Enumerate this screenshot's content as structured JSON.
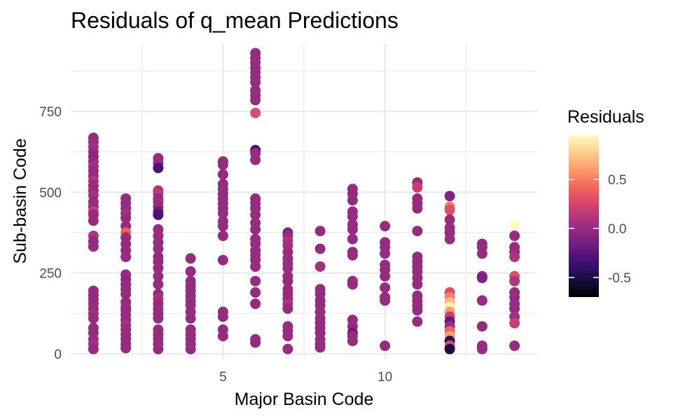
{
  "chart_data": {
    "type": "scatter",
    "title": "Residuals of q_mean Predictions",
    "xlabel": "Major Basin Code",
    "ylabel": "Sub-basin Code",
    "xlim": [
      0.3,
      14.7
    ],
    "ylim": [
      -15,
      960
    ],
    "x_ticks": [
      5,
      10
    ],
    "x_tick_labels": [
      "5",
      "10"
    ],
    "x_minor_ticks": [
      2.5,
      7.5,
      12.5
    ],
    "y_ticks": [
      0,
      250,
      500,
      750
    ],
    "y_tick_labels": [
      "0",
      "250",
      "500",
      "750"
    ],
    "y_minor_ticks": [
      125,
      375,
      625,
      875
    ],
    "grid": true,
    "legend": {
      "title": "Residuals",
      "position": "right",
      "colormap": "magma",
      "range": [
        -0.7,
        0.95
      ],
      "ticks": [
        -0.5,
        0.0,
        0.5
      ],
      "tick_labels": [
        "-0.5",
        "0.0",
        "0.5"
      ]
    },
    "colors": {
      "grid": "#ebebeb",
      "tick_text": "#4d4d4d",
      "magma": [
        "#000004",
        "#180f3d",
        "#440f76",
        "#721f81",
        "#9e2f7f",
        "#cd4071",
        "#f1605d",
        "#fd9668",
        "#feca8d",
        "#fcfdbf"
      ]
    },
    "points": [
      {
        "x": 1,
        "y": 668,
        "r": 0
      },
      {
        "x": 1,
        "y": 655,
        "r": 0
      },
      {
        "x": 1,
        "y": 640,
        "r": 0.05
      },
      {
        "x": 1,
        "y": 625,
        "r": 0
      },
      {
        "x": 1,
        "y": 610,
        "r": -0.05
      },
      {
        "x": 1,
        "y": 595,
        "r": 0
      },
      {
        "x": 1,
        "y": 580,
        "r": 0.05
      },
      {
        "x": 1,
        "y": 565,
        "r": 0
      },
      {
        "x": 1,
        "y": 550,
        "r": 0
      },
      {
        "x": 1,
        "y": 535,
        "r": 0.1
      },
      {
        "x": 1,
        "y": 520,
        "r": 0
      },
      {
        "x": 1,
        "y": 505,
        "r": 0
      },
      {
        "x": 1,
        "y": 490,
        "r": 0.05
      },
      {
        "x": 1,
        "y": 470,
        "r": 0
      },
      {
        "x": 1,
        "y": 455,
        "r": 0
      },
      {
        "x": 1,
        "y": 440,
        "r": 0.2
      },
      {
        "x": 1,
        "y": 430,
        "r": 0
      },
      {
        "x": 1,
        "y": 412,
        "r": 0
      },
      {
        "x": 1,
        "y": 365,
        "r": 0.1
      },
      {
        "x": 1,
        "y": 348,
        "r": 0
      },
      {
        "x": 1,
        "y": 332,
        "r": 0
      },
      {
        "x": 1,
        "y": 195,
        "r": 0
      },
      {
        "x": 1,
        "y": 182,
        "r": 0
      },
      {
        "x": 1,
        "y": 168,
        "r": 0
      },
      {
        "x": 1,
        "y": 155,
        "r": 0
      },
      {
        "x": 1,
        "y": 140,
        "r": 0
      },
      {
        "x": 1,
        "y": 125,
        "r": 0.05
      },
      {
        "x": 1,
        "y": 110,
        "r": 0
      },
      {
        "x": 1,
        "y": 80,
        "r": 0
      },
      {
        "x": 1,
        "y": 65,
        "r": 0
      },
      {
        "x": 1,
        "y": 45,
        "r": 0
      },
      {
        "x": 1,
        "y": 30,
        "r": 0.05
      },
      {
        "x": 1,
        "y": 15,
        "r": 0
      },
      {
        "x": 2,
        "y": 480,
        "r": 0
      },
      {
        "x": 2,
        "y": 465,
        "r": 0
      },
      {
        "x": 2,
        "y": 450,
        "r": 0
      },
      {
        "x": 2,
        "y": 435,
        "r": 0.05
      },
      {
        "x": 2,
        "y": 420,
        "r": 0
      },
      {
        "x": 2,
        "y": 395,
        "r": 0
      },
      {
        "x": 2,
        "y": 375,
        "r": 0.4
      },
      {
        "x": 2,
        "y": 360,
        "r": 0
      },
      {
        "x": 2,
        "y": 340,
        "r": 0
      },
      {
        "x": 2,
        "y": 320,
        "r": 0
      },
      {
        "x": 2,
        "y": 300,
        "r": 0
      },
      {
        "x": 2,
        "y": 245,
        "r": 0
      },
      {
        "x": 2,
        "y": 230,
        "r": -0.05
      },
      {
        "x": 2,
        "y": 215,
        "r": 0
      },
      {
        "x": 2,
        "y": 200,
        "r": 0
      },
      {
        "x": 2,
        "y": 185,
        "r": 0
      },
      {
        "x": 2,
        "y": 160,
        "r": 0
      },
      {
        "x": 2,
        "y": 145,
        "r": 0
      },
      {
        "x": 2,
        "y": 135,
        "r": 0
      },
      {
        "x": 2,
        "y": 120,
        "r": 0
      },
      {
        "x": 2,
        "y": 105,
        "r": 0
      },
      {
        "x": 2,
        "y": 90,
        "r": 0.05
      },
      {
        "x": 2,
        "y": 75,
        "r": 0
      },
      {
        "x": 2,
        "y": 60,
        "r": 0
      },
      {
        "x": 2,
        "y": 45,
        "r": 0
      },
      {
        "x": 2,
        "y": 30,
        "r": 0
      },
      {
        "x": 2,
        "y": 18,
        "r": 0
      },
      {
        "x": 3,
        "y": 605,
        "r": 0
      },
      {
        "x": 3,
        "y": 590,
        "r": 0
      },
      {
        "x": 3,
        "y": 575,
        "r": -0.3
      },
      {
        "x": 3,
        "y": 505,
        "r": 0.1
      },
      {
        "x": 3,
        "y": 495,
        "r": 0.15
      },
      {
        "x": 3,
        "y": 480,
        "r": 0
      },
      {
        "x": 3,
        "y": 470,
        "r": 0
      },
      {
        "x": 3,
        "y": 455,
        "r": 0
      },
      {
        "x": 3,
        "y": 440,
        "r": -0.2
      },
      {
        "x": 3,
        "y": 430,
        "r": -0.3
      },
      {
        "x": 3,
        "y": 385,
        "r": 0
      },
      {
        "x": 3,
        "y": 365,
        "r": 0
      },
      {
        "x": 3,
        "y": 345,
        "r": 0
      },
      {
        "x": 3,
        "y": 325,
        "r": 0
      },
      {
        "x": 3,
        "y": 300,
        "r": 0
      },
      {
        "x": 3,
        "y": 285,
        "r": 0
      },
      {
        "x": 3,
        "y": 265,
        "r": 0
      },
      {
        "x": 3,
        "y": 240,
        "r": 0
      },
      {
        "x": 3,
        "y": 215,
        "r": 0
      },
      {
        "x": 3,
        "y": 185,
        "r": 0
      },
      {
        "x": 3,
        "y": 170,
        "r": 0.1
      },
      {
        "x": 3,
        "y": 155,
        "r": 0
      },
      {
        "x": 3,
        "y": 140,
        "r": 0
      },
      {
        "x": 3,
        "y": 125,
        "r": 0
      },
      {
        "x": 3,
        "y": 110,
        "r": 0
      },
      {
        "x": 3,
        "y": 75,
        "r": 0
      },
      {
        "x": 3,
        "y": 60,
        "r": 0
      },
      {
        "x": 3,
        "y": 45,
        "r": 0
      },
      {
        "x": 3,
        "y": 30,
        "r": 0
      },
      {
        "x": 3,
        "y": 15,
        "r": 0
      },
      {
        "x": 4,
        "y": 295,
        "r": 0
      },
      {
        "x": 4,
        "y": 255,
        "r": 0
      },
      {
        "x": 4,
        "y": 225,
        "r": 0
      },
      {
        "x": 4,
        "y": 210,
        "r": 0
      },
      {
        "x": 4,
        "y": 195,
        "r": 0
      },
      {
        "x": 4,
        "y": 180,
        "r": 0
      },
      {
        "x": 4,
        "y": 165,
        "r": 0
      },
      {
        "x": 4,
        "y": 150,
        "r": 0
      },
      {
        "x": 4,
        "y": 130,
        "r": 0
      },
      {
        "x": 4,
        "y": 110,
        "r": 0
      },
      {
        "x": 4,
        "y": 75,
        "r": 0
      },
      {
        "x": 4,
        "y": 60,
        "r": 0
      },
      {
        "x": 4,
        "y": 45,
        "r": 0
      },
      {
        "x": 4,
        "y": 30,
        "r": 0
      },
      {
        "x": 4,
        "y": 15,
        "r": 0
      },
      {
        "x": 5,
        "y": 595,
        "r": 0
      },
      {
        "x": 5,
        "y": 585,
        "r": 0
      },
      {
        "x": 5,
        "y": 555,
        "r": 0
      },
      {
        "x": 5,
        "y": 525,
        "r": 0
      },
      {
        "x": 5,
        "y": 510,
        "r": 0
      },
      {
        "x": 5,
        "y": 495,
        "r": 0
      },
      {
        "x": 5,
        "y": 480,
        "r": 0
      },
      {
        "x": 5,
        "y": 465,
        "r": 0
      },
      {
        "x": 5,
        "y": 450,
        "r": 0
      },
      {
        "x": 5,
        "y": 435,
        "r": 0
      },
      {
        "x": 5,
        "y": 410,
        "r": 0
      },
      {
        "x": 5,
        "y": 395,
        "r": 0
      },
      {
        "x": 5,
        "y": 365,
        "r": 0
      },
      {
        "x": 5,
        "y": 290,
        "r": 0
      },
      {
        "x": 5,
        "y": 130,
        "r": 0
      },
      {
        "x": 5,
        "y": 115,
        "r": 0
      },
      {
        "x": 5,
        "y": 75,
        "r": 0
      },
      {
        "x": 5,
        "y": 55,
        "r": 0
      },
      {
        "x": 6,
        "y": 930,
        "r": 0
      },
      {
        "x": 6,
        "y": 915,
        "r": 0
      },
      {
        "x": 6,
        "y": 900,
        "r": 0
      },
      {
        "x": 6,
        "y": 885,
        "r": 0
      },
      {
        "x": 6,
        "y": 870,
        "r": 0
      },
      {
        "x": 6,
        "y": 855,
        "r": 0
      },
      {
        "x": 6,
        "y": 840,
        "r": 0
      },
      {
        "x": 6,
        "y": 815,
        "r": 0
      },
      {
        "x": 6,
        "y": 800,
        "r": 0
      },
      {
        "x": 6,
        "y": 785,
        "r": 0
      },
      {
        "x": 6,
        "y": 745,
        "r": 0.3
      },
      {
        "x": 6,
        "y": 630,
        "r": -0.3
      },
      {
        "x": 6,
        "y": 620,
        "r": 0
      },
      {
        "x": 6,
        "y": 600,
        "r": 0
      },
      {
        "x": 6,
        "y": 480,
        "r": 0
      },
      {
        "x": 6,
        "y": 465,
        "r": 0
      },
      {
        "x": 6,
        "y": 450,
        "r": 0
      },
      {
        "x": 6,
        "y": 430,
        "r": 0
      },
      {
        "x": 6,
        "y": 405,
        "r": 0
      },
      {
        "x": 6,
        "y": 385,
        "r": 0
      },
      {
        "x": 6,
        "y": 355,
        "r": 0
      },
      {
        "x": 6,
        "y": 340,
        "r": 0
      },
      {
        "x": 6,
        "y": 320,
        "r": 0
      },
      {
        "x": 6,
        "y": 305,
        "r": 0
      },
      {
        "x": 6,
        "y": 290,
        "r": 0
      },
      {
        "x": 6,
        "y": 270,
        "r": 0
      },
      {
        "x": 6,
        "y": 225,
        "r": 0
      },
      {
        "x": 6,
        "y": 190,
        "r": 0
      },
      {
        "x": 6,
        "y": 155,
        "r": 0
      },
      {
        "x": 6,
        "y": 45,
        "r": 0
      },
      {
        "x": 6,
        "y": 35,
        "r": 0
      },
      {
        "x": 7,
        "y": 375,
        "r": -0.1
      },
      {
        "x": 7,
        "y": 365,
        "r": 0
      },
      {
        "x": 7,
        "y": 350,
        "r": 0.1
      },
      {
        "x": 7,
        "y": 335,
        "r": 0.05
      },
      {
        "x": 7,
        "y": 315,
        "r": 0
      },
      {
        "x": 7,
        "y": 295,
        "r": 0
      },
      {
        "x": 7,
        "y": 280,
        "r": 0
      },
      {
        "x": 7,
        "y": 265,
        "r": 0
      },
      {
        "x": 7,
        "y": 240,
        "r": 0
      },
      {
        "x": 7,
        "y": 225,
        "r": 0
      },
      {
        "x": 7,
        "y": 200,
        "r": 0
      },
      {
        "x": 7,
        "y": 185,
        "r": 0
      },
      {
        "x": 7,
        "y": 170,
        "r": 0
      },
      {
        "x": 7,
        "y": 155,
        "r": 0.1
      },
      {
        "x": 7,
        "y": 140,
        "r": 0
      },
      {
        "x": 7,
        "y": 85,
        "r": 0
      },
      {
        "x": 7,
        "y": 70,
        "r": 0
      },
      {
        "x": 7,
        "y": 55,
        "r": 0
      },
      {
        "x": 7,
        "y": 15,
        "r": 0
      },
      {
        "x": 8,
        "y": 380,
        "r": 0
      },
      {
        "x": 8,
        "y": 325,
        "r": 0
      },
      {
        "x": 8,
        "y": 270,
        "r": 0.05
      },
      {
        "x": 8,
        "y": 200,
        "r": 0
      },
      {
        "x": 8,
        "y": 185,
        "r": 0
      },
      {
        "x": 8,
        "y": 165,
        "r": 0
      },
      {
        "x": 8,
        "y": 150,
        "r": 0
      },
      {
        "x": 8,
        "y": 130,
        "r": 0
      },
      {
        "x": 8,
        "y": 110,
        "r": 0
      },
      {
        "x": 8,
        "y": 95,
        "r": 0
      },
      {
        "x": 8,
        "y": 80,
        "r": 0
      },
      {
        "x": 8,
        "y": 65,
        "r": 0
      },
      {
        "x": 8,
        "y": 45,
        "r": 0
      },
      {
        "x": 8,
        "y": 30,
        "r": 0
      },
      {
        "x": 8,
        "y": 20,
        "r": 0
      },
      {
        "x": 9,
        "y": 510,
        "r": 0
      },
      {
        "x": 9,
        "y": 495,
        "r": 0
      },
      {
        "x": 9,
        "y": 475,
        "r": 0
      },
      {
        "x": 9,
        "y": 440,
        "r": 0
      },
      {
        "x": 9,
        "y": 425,
        "r": 0
      },
      {
        "x": 9,
        "y": 400,
        "r": 0
      },
      {
        "x": 9,
        "y": 385,
        "r": 0
      },
      {
        "x": 9,
        "y": 355,
        "r": 0
      },
      {
        "x": 9,
        "y": 315,
        "r": 0
      },
      {
        "x": 9,
        "y": 305,
        "r": 0
      },
      {
        "x": 9,
        "y": 225,
        "r": 0
      },
      {
        "x": 9,
        "y": 215,
        "r": 0
      },
      {
        "x": 9,
        "y": 105,
        "r": 0
      },
      {
        "x": 9,
        "y": 85,
        "r": 0
      },
      {
        "x": 9,
        "y": 65,
        "r": -0.2
      },
      {
        "x": 9,
        "y": 55,
        "r": 0
      },
      {
        "x": 9,
        "y": 40,
        "r": 0
      },
      {
        "x": 10,
        "y": 395,
        "r": 0
      },
      {
        "x": 10,
        "y": 345,
        "r": 0
      },
      {
        "x": 10,
        "y": 330,
        "r": 0
      },
      {
        "x": 10,
        "y": 310,
        "r": 0
      },
      {
        "x": 10,
        "y": 275,
        "r": 0
      },
      {
        "x": 10,
        "y": 260,
        "r": 0
      },
      {
        "x": 10,
        "y": 240,
        "r": 0
      },
      {
        "x": 10,
        "y": 205,
        "r": 0
      },
      {
        "x": 10,
        "y": 175,
        "r": 0
      },
      {
        "x": 10,
        "y": 165,
        "r": 0
      },
      {
        "x": 10,
        "y": 25,
        "r": 0
      },
      {
        "x": 11,
        "y": 530,
        "r": 0
      },
      {
        "x": 11,
        "y": 515,
        "r": 0.2
      },
      {
        "x": 11,
        "y": 480,
        "r": 0
      },
      {
        "x": 11,
        "y": 465,
        "r": 0
      },
      {
        "x": 11,
        "y": 450,
        "r": 0
      },
      {
        "x": 11,
        "y": 380,
        "r": 0
      },
      {
        "x": 11,
        "y": 300,
        "r": 0
      },
      {
        "x": 11,
        "y": 285,
        "r": 0
      },
      {
        "x": 11,
        "y": 270,
        "r": 0
      },
      {
        "x": 11,
        "y": 255,
        "r": 0
      },
      {
        "x": 11,
        "y": 235,
        "r": 0
      },
      {
        "x": 11,
        "y": 215,
        "r": 0
      },
      {
        "x": 11,
        "y": 180,
        "r": 0
      },
      {
        "x": 11,
        "y": 165,
        "r": 0
      },
      {
        "x": 11,
        "y": 150,
        "r": 0
      },
      {
        "x": 11,
        "y": 135,
        "r": 0
      },
      {
        "x": 11,
        "y": 100,
        "r": 0
      },
      {
        "x": 12,
        "y": 488,
        "r": -0.1
      },
      {
        "x": 12,
        "y": 455,
        "r": 0.5
      },
      {
        "x": 12,
        "y": 445,
        "r": 0.3
      },
      {
        "x": 12,
        "y": 415,
        "r": 0
      },
      {
        "x": 12,
        "y": 390,
        "r": 0
      },
      {
        "x": 12,
        "y": 375,
        "r": 0
      },
      {
        "x": 12,
        "y": 355,
        "r": 0
      },
      {
        "x": 12,
        "y": 190,
        "r": 0.3
      },
      {
        "x": 12,
        "y": 175,
        "r": 0.5
      },
      {
        "x": 12,
        "y": 160,
        "r": 0.7
      },
      {
        "x": 12,
        "y": 145,
        "r": 0.9
      },
      {
        "x": 12,
        "y": 130,
        "r": 0.6
      },
      {
        "x": 12,
        "y": 115,
        "r": 0.2
      },
      {
        "x": 12,
        "y": 100,
        "r": -0.2
      },
      {
        "x": 12,
        "y": 85,
        "r": 0
      },
      {
        "x": 12,
        "y": 70,
        "r": 0.4
      },
      {
        "x": 12,
        "y": 55,
        "r": 0.6
      },
      {
        "x": 12,
        "y": 40,
        "r": -0.4
      },
      {
        "x": 12,
        "y": 25,
        "r": 0.3
      },
      {
        "x": 12,
        "y": 15,
        "r": -0.5
      },
      {
        "x": 13,
        "y": 340,
        "r": 0
      },
      {
        "x": 13,
        "y": 330,
        "r": 0
      },
      {
        "x": 13,
        "y": 310,
        "r": 0
      },
      {
        "x": 13,
        "y": 240,
        "r": 0
      },
      {
        "x": 13,
        "y": 235,
        "r": -0.1
      },
      {
        "x": 13,
        "y": 165,
        "r": 0
      },
      {
        "x": 13,
        "y": 85,
        "r": 0
      },
      {
        "x": 13,
        "y": 25,
        "r": 0
      },
      {
        "x": 13,
        "y": 15,
        "r": 0
      },
      {
        "x": 14,
        "y": 400,
        "r": 0.95
      },
      {
        "x": 14,
        "y": 365,
        "r": 0
      },
      {
        "x": 14,
        "y": 330,
        "r": 0
      },
      {
        "x": 14,
        "y": 315,
        "r": 0
      },
      {
        "x": 14,
        "y": 300,
        "r": 0.1
      },
      {
        "x": 14,
        "y": 240,
        "r": 0.3
      },
      {
        "x": 14,
        "y": 225,
        "r": 0.1
      },
      {
        "x": 14,
        "y": 190,
        "r": 0
      },
      {
        "x": 14,
        "y": 175,
        "r": 0
      },
      {
        "x": 14,
        "y": 155,
        "r": 0
      },
      {
        "x": 14,
        "y": 140,
        "r": 0
      },
      {
        "x": 14,
        "y": 115,
        "r": 0.05
      },
      {
        "x": 14,
        "y": 95,
        "r": 0.2
      },
      {
        "x": 14,
        "y": 25,
        "r": 0
      }
    ]
  }
}
